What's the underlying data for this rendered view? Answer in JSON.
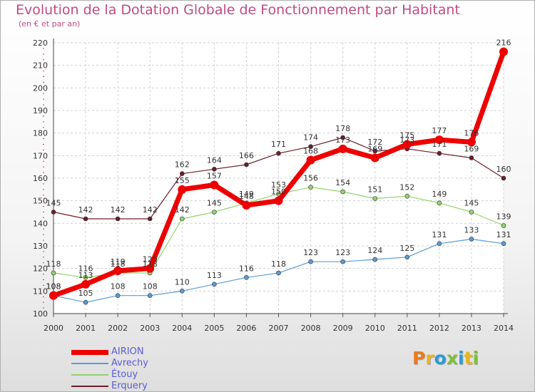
{
  "title": "Evolution de la Dotation Globale de Fonctionnement par Habitant",
  "subtitle": "(en € et par an)",
  "logo": {
    "text": "Proxiti",
    "letter_colors": [
      "#e87b1e",
      "#e8b51e",
      "#2a9bd8",
      "#7fbf3c",
      "#2a9bd8",
      "#e8b51e",
      "#7fbf3c"
    ]
  },
  "chart_data": {
    "type": "line",
    "x": [
      "2000",
      "2001",
      "2002",
      "2003",
      "2004",
      "2005",
      "2006",
      "2007",
      "2008",
      "2009",
      "2010",
      "2011",
      "2012",
      "2013",
      "2014"
    ],
    "y_ticks": [
      "100",
      "110",
      "120",
      "130",
      "140",
      "150",
      "160",
      "170",
      "180",
      "190",
      "200",
      "210",
      "220"
    ],
    "ylim": [
      100,
      220
    ],
    "grid": true,
    "legend": "bottom-left",
    "series": [
      {
        "name": "AIRION",
        "color": "#ee0000",
        "bold": true,
        "values": [
          108,
          113,
          119,
          120,
          155,
          157,
          148,
          150,
          168,
          173,
          169,
          175,
          177,
          176,
          216
        ]
      },
      {
        "name": "Avrechy",
        "color": "#5b9bd5",
        "bold": false,
        "values": [
          108,
          105,
          108,
          108,
          110,
          113,
          116,
          118,
          123,
          123,
          124,
          125,
          131,
          133,
          131
        ]
      },
      {
        "name": "Étouy",
        "color": "#92d36e",
        "bold": false,
        "values": [
          118,
          116,
          118,
          118,
          142,
          145,
          149,
          153,
          156,
          154,
          151,
          152,
          149,
          145,
          139
        ]
      },
      {
        "name": "Erquery",
        "color": "#6b1f2a",
        "bold": false,
        "values": [
          145,
          142,
          142,
          142,
          162,
          164,
          166,
          171,
          174,
          178,
          172,
          173,
          171,
          169,
          160
        ]
      }
    ]
  }
}
